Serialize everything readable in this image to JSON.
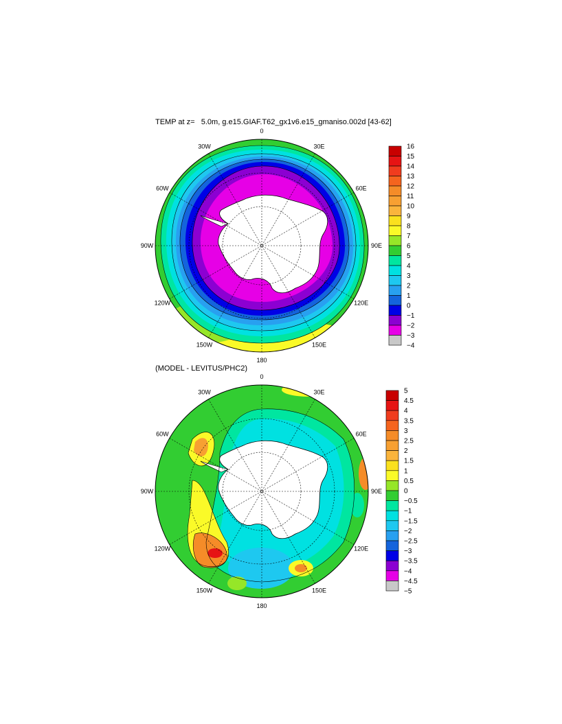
{
  "panels": [
    {
      "id": "temperature",
      "title": "TEMP at z=   5.0m, g.e15.GIAF.T62_gx1v6.e15_gmaniso.002d [43-62]",
      "lon_labels": [
        "0",
        "30E",
        "60E",
        "90E",
        "120E",
        "150E",
        "180",
        "150W",
        "120W",
        "90W",
        "60W",
        "30W"
      ],
      "colorbar": {
        "labels": [
          "16",
          "15",
          "14",
          "13",
          "12",
          "11",
          "10",
          "9",
          "8",
          "7",
          "6",
          "5",
          "4",
          "3",
          "2",
          "1",
          "0",
          "−1",
          "−2",
          "−3",
          "−4"
        ],
        "colors": [
          "#c80000",
          "#e61414",
          "#f03c1e",
          "#f5641e",
          "#f58c28",
          "#f7a032",
          "#fab43c",
          "#fae11e",
          "#fafa28",
          "#96e628",
          "#32cd32",
          "#00e6a0",
          "#00e1e1",
          "#1ec8f0",
          "#28a0f0",
          "#1464dc",
          "#0000e6",
          "#8c00d2",
          "#e600e6",
          "#c8c8c8",
          "#6e6e6e"
        ]
      }
    },
    {
      "id": "difference",
      "title": "(MODEL - LEVITUS/PHC2)",
      "lon_labels": [
        "0",
        "30E",
        "60E",
        "90E",
        "120E",
        "150E",
        "180",
        "150W",
        "120W",
        "90W",
        "60W",
        "30W"
      ],
      "colorbar": {
        "labels": [
          "5",
          "4.5",
          "4",
          "3.5",
          "3",
          "2.5",
          "2",
          "1.5",
          "1",
          "0.5",
          "0",
          "−0.5",
          "−1",
          "−1.5",
          "−2",
          "−2.5",
          "−3",
          "−3.5",
          "−4",
          "−4.5",
          "−5"
        ],
        "colors": [
          "#c80000",
          "#e61414",
          "#f03c1e",
          "#f5641e",
          "#f58c28",
          "#f7a032",
          "#fab43c",
          "#fae11e",
          "#fafa28",
          "#96e628",
          "#32cd32",
          "#00e6a0",
          "#00e1e1",
          "#1ec8f0",
          "#28a0f0",
          "#1464dc",
          "#0000e6",
          "#8c00d2",
          "#e600e6",
          "#c8c8c8",
          "#6e6e6e"
        ]
      }
    }
  ]
}
